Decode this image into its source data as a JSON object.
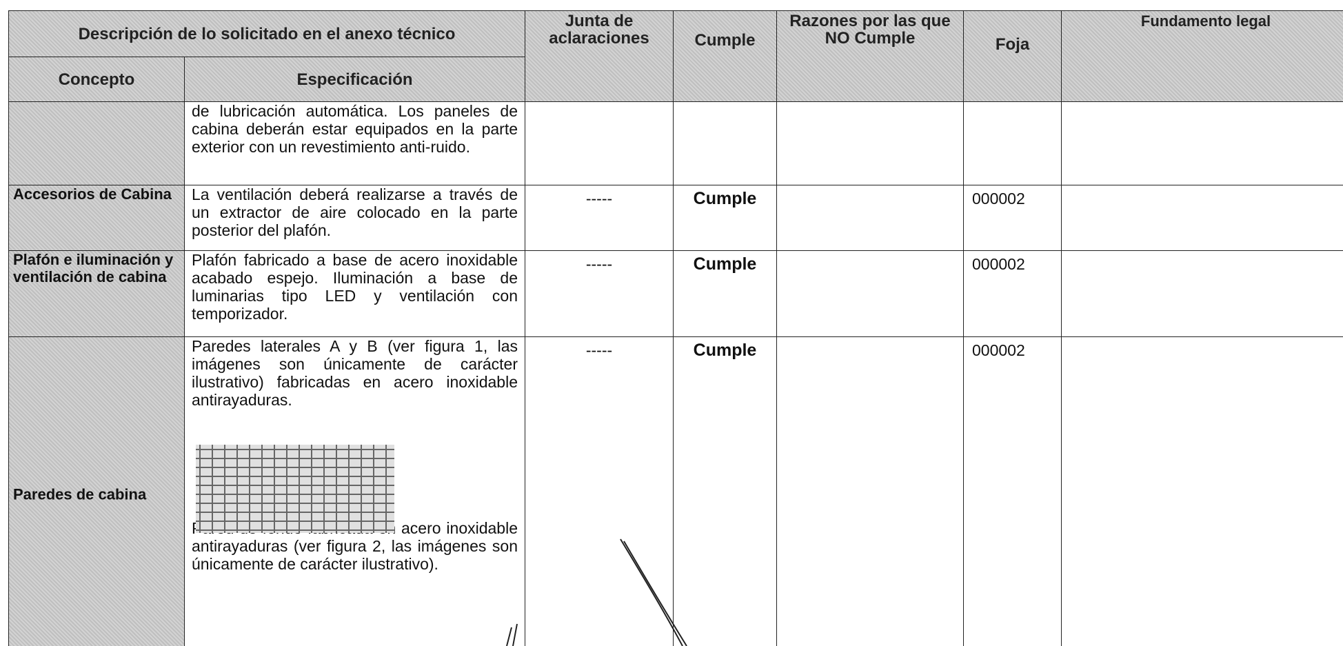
{
  "header": {
    "group_title": "Descripción de lo solicitado en el anexo técnico",
    "junta": "Junta de aclaraciones",
    "cumple": "Cumple",
    "razones": "Razones por las que NO Cumple",
    "foja": "Foja",
    "fundamento": "Fundamento legal",
    "concepto": "Concepto",
    "especificacion": "Especificación"
  },
  "rows": [
    {
      "especificacion": [
        "de lubricación automática. Los paneles de cabina deberán estar equipados en la parte exterior con un revestimiento anti-ruido."
      ]
    },
    {
      "concepto": "Accesorios de Cabina",
      "especificacion": [
        "La ventilación deberá realizarse a través de un extractor de aire colocado en la parte posterior del plafón."
      ],
      "junta": "-----",
      "cumple": "Cumple",
      "foja": "000002"
    },
    {
      "concepto": "Plafón e iluminación y ventilación de cabina",
      "especificacion": [
        "Plafón fabricado a base de acero inoxidable acabado espejo. Iluminación a base de luminarias tipo LED y ventilación con temporizador."
      ],
      "junta": "-----",
      "cumple": "Cumple",
      "foja": "000002"
    },
    {
      "concepto": "Paredes de cabina",
      "especificacion": [
        "Paredes laterales A y B (ver figura 1, las imágenes son únicamente de carácter ilustrativo) fabricadas en acero inoxidable antirayaduras.",
        "Pared de fondo fabricada en acero inoxidable antirayaduras (ver figura 2, las imágenes son únicamente de carácter ilustrativo)."
      ],
      "junta": "-----",
      "cumple": "Cumple",
      "foja": "000002"
    }
  ]
}
